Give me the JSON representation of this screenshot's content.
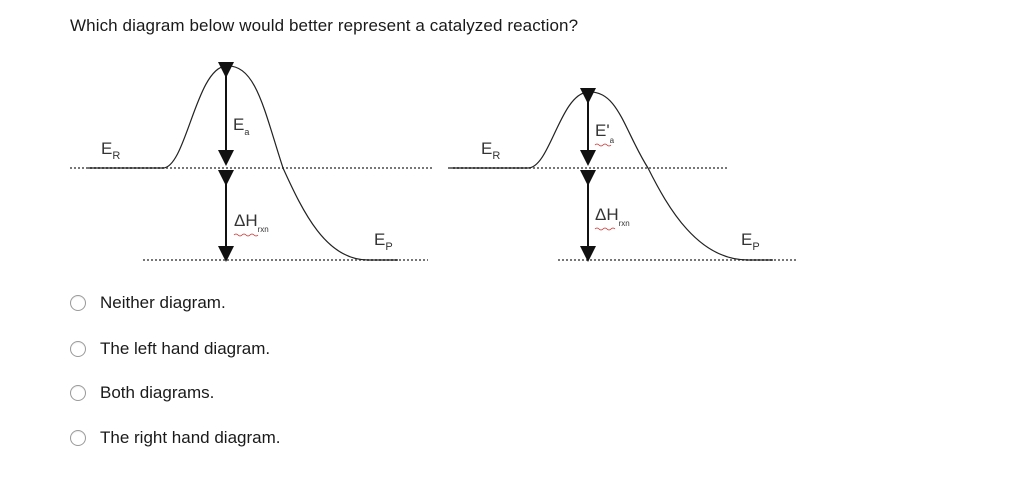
{
  "question": "Which diagram below would better represent a catalyzed reaction?",
  "left_diagram": {
    "er": "E",
    "er_sub": "R",
    "ea": "E",
    "ea_sub": "a",
    "dh": "ΔH",
    "dh_sub": "rxn",
    "ep": "E",
    "ep_sub": "P"
  },
  "right_diagram": {
    "er": "E",
    "er_sub": "R",
    "ea": "E'",
    "ea_sub": "a",
    "dh": "ΔH",
    "dh_sub": "rxn",
    "ep": "E",
    "ep_sub": "P"
  },
  "options": [
    {
      "label": "Neither diagram."
    },
    {
      "label": "The left hand diagram."
    },
    {
      "label": "Both diagrams."
    },
    {
      "label": "The right hand diagram."
    }
  ]
}
